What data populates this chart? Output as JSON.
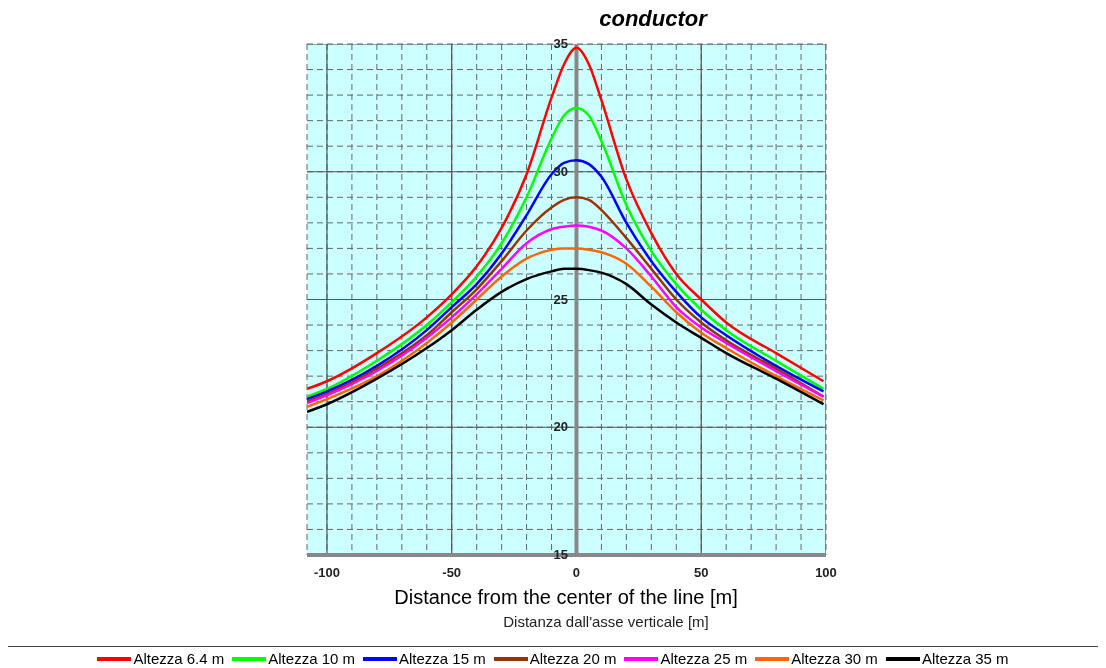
{
  "chart_data": {
    "type": "line",
    "title": "conductor",
    "xlabel": "Distance from the center of the line [m]",
    "annotations": [
      "Distanza dall'asse verticale [m]"
    ],
    "x": [
      -108,
      -100,
      -80,
      -60,
      -50,
      -40,
      -30,
      -20,
      -10,
      -5,
      0,
      5,
      10,
      20,
      30,
      40,
      50,
      60,
      80,
      99
    ],
    "series": [
      {
        "name": "Altezza 6.4 m",
        "color": "#ff0000",
        "values": [
          21.5,
          21.8,
          22.9,
          24.3,
          25.2,
          26.3,
          27.8,
          29.9,
          32.9,
          34.2,
          34.85,
          34.2,
          32.8,
          29.7,
          27.6,
          26.0,
          25.0,
          24.1,
          22.9,
          21.8
        ]
      },
      {
        "name": "Altezza 10 m",
        "color": "#00ff00",
        "values": [
          21.2,
          21.5,
          22.6,
          24.0,
          24.9,
          25.9,
          27.2,
          29.0,
          31.3,
          32.2,
          32.5,
          32.2,
          31.2,
          28.7,
          26.9,
          25.6,
          24.6,
          23.8,
          22.6,
          21.5
        ]
      },
      {
        "name": "Altezza 15 m",
        "color": "#0000ff",
        "values": [
          21.1,
          21.4,
          22.4,
          23.8,
          24.7,
          25.6,
          26.8,
          28.3,
          29.9,
          30.35,
          30.45,
          30.3,
          29.8,
          28.0,
          26.5,
          25.3,
          24.3,
          23.6,
          22.4,
          21.4
        ]
      },
      {
        "name": "Altezza 20 m",
        "color": "#993300",
        "values": [
          21.0,
          21.3,
          22.3,
          23.6,
          24.5,
          25.4,
          26.5,
          27.7,
          28.6,
          28.9,
          29.0,
          28.9,
          28.5,
          27.4,
          26.2,
          25.0,
          24.1,
          23.4,
          22.3,
          21.2
        ]
      },
      {
        "name": "Altezza 25 m",
        "color": "#ff00ff",
        "values": [
          20.95,
          21.25,
          22.2,
          23.5,
          24.3,
          25.2,
          26.2,
          27.2,
          27.75,
          27.85,
          27.9,
          27.85,
          27.7,
          27.0,
          25.9,
          24.7,
          23.9,
          23.3,
          22.2,
          21.2
        ]
      },
      {
        "name": "Altezza 30 m",
        "color": "#ff6600",
        "values": [
          20.8,
          21.1,
          22.0,
          23.3,
          24.1,
          25.0,
          25.9,
          26.6,
          26.95,
          27.0,
          27.0,
          26.95,
          26.85,
          26.4,
          25.5,
          24.5,
          23.7,
          23.1,
          22.0,
          21.05
        ]
      },
      {
        "name": "Altezza 35 m",
        "color": "#000000",
        "values": [
          20.6,
          20.9,
          21.9,
          23.1,
          23.8,
          24.6,
          25.3,
          25.8,
          26.1,
          26.2,
          26.2,
          26.15,
          26.05,
          25.6,
          24.8,
          24.1,
          23.5,
          22.9,
          21.9,
          20.9
        ]
      }
    ],
    "xlim": [
      -108,
      100
    ],
    "xticks": [
      {
        "value": -100,
        "label": "-100"
      },
      {
        "value": -90,
        "label": null
      },
      {
        "value": -80,
        "label": null
      },
      {
        "value": -70,
        "label": null
      },
      {
        "value": -60,
        "label": null
      },
      {
        "value": -50,
        "label": "-50"
      },
      {
        "value": -40,
        "label": null
      },
      {
        "value": -30,
        "label": null
      },
      {
        "value": -20,
        "label": null
      },
      {
        "value": -10,
        "label": null
      },
      {
        "value": 0,
        "label": "0"
      },
      {
        "value": 10,
        "label": null
      },
      {
        "value": 20,
        "label": null
      },
      {
        "value": 30,
        "label": null
      },
      {
        "value": 40,
        "label": null
      },
      {
        "value": 50,
        "label": "50"
      },
      {
        "value": 60,
        "label": null
      },
      {
        "value": 70,
        "label": null
      },
      {
        "value": 80,
        "label": null
      },
      {
        "value": 90,
        "label": null
      },
      100
    ],
    "ylim": [
      15,
      35
    ],
    "yticks": [
      15,
      {
        "value": 16,
        "label": null
      },
      {
        "value": 17,
        "label": null
      },
      {
        "value": 18,
        "label": null
      },
      {
        "value": 19,
        "label": null
      },
      20,
      {
        "value": 21,
        "label": null
      },
      {
        "value": 22,
        "label": null
      },
      {
        "value": 23,
        "label": null
      },
      {
        "value": 24,
        "label": null
      },
      25,
      {
        "value": 26,
        "label": null
      },
      {
        "value": 27,
        "label": null
      },
      {
        "value": 28,
        "label": null
      },
      {
        "value": 29,
        "label": null
      },
      30,
      {
        "value": 31,
        "label": null
      },
      {
        "value": 32,
        "label": null
      },
      {
        "value": 33,
        "label": null
      },
      {
        "value": 34,
        "label": null
      },
      35
    ],
    "grid": true,
    "legend": "bottom",
    "marker": "none",
    "line_style": "solid"
  }
}
